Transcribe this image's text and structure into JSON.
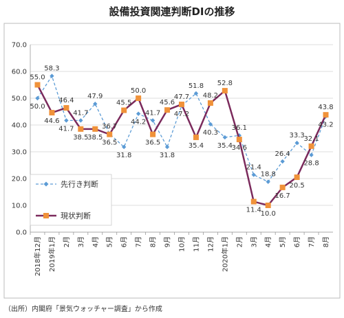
{
  "source_note": "（出所）内閣府「景気ウォッチャー調査」から作成",
  "chart_data": {
    "type": "line",
    "title": "設備投資関連判断DIの推移",
    "categories": [
      "2018年12月",
      "2019年1月",
      "2月",
      "3月",
      "4月",
      "5月",
      "6月",
      "7月",
      "8月",
      "9月",
      "10月",
      "11月",
      "12月",
      "2020年1月",
      "2月",
      "3月",
      "4月",
      "5月",
      "6月",
      "7月",
      "8月"
    ],
    "ylim": [
      0,
      70
    ],
    "yticks": [
      "0.0",
      "10.0",
      "20.0",
      "30.0",
      "40.0",
      "50.0",
      "60.0",
      "70.0"
    ],
    "grid": true,
    "legend_position": "bottom-left",
    "series": [
      {
        "name": "先行き判断",
        "style": "dashed",
        "color": "#5b9bd5",
        "marker": "diamond",
        "values": [
          50.0,
          58.3,
          41.7,
          41.7,
          47.9,
          36.7,
          31.8,
          44.2,
          41.7,
          31.8,
          47.2,
          51.8,
          40.3,
          35.4,
          36.1,
          21.4,
          18.8,
          26.4,
          33.3,
          28.8,
          43.2
        ],
        "labels": [
          "50.0",
          "58.3",
          "41.7",
          "41.7",
          "47.9",
          "36.7",
          "31.8",
          "44.2",
          "41.7",
          "31.8",
          "47.2",
          "51.8",
          "40.3",
          "35.4",
          "36.1",
          "21.4",
          "18.8",
          "26.4",
          "33.3",
          "28.8",
          "43.2"
        ]
      },
      {
        "name": "現状判断",
        "style": "solid",
        "color": "#7b2a5c",
        "marker_color": "#f0923a",
        "marker": "square",
        "values": [
          55.0,
          44.6,
          46.4,
          38.5,
          38.5,
          36.5,
          45.5,
          50.0,
          36.5,
          45.6,
          47.7,
          35.4,
          48.2,
          52.8,
          34.6,
          11.4,
          10.0,
          16.7,
          20.5,
          32.1,
          43.8
        ],
        "labels": [
          "55.0",
          "44.6",
          "46.4",
          "38.5",
          "38.5",
          "36.5",
          "45.5",
          "50.0",
          "36.5",
          "45.6",
          "47.7",
          "35.4",
          "48.2",
          "52.8",
          "34.6",
          "11.4",
          "10.0",
          "16.7",
          "20.5",
          "32.1",
          "43.8"
        ]
      }
    ]
  }
}
